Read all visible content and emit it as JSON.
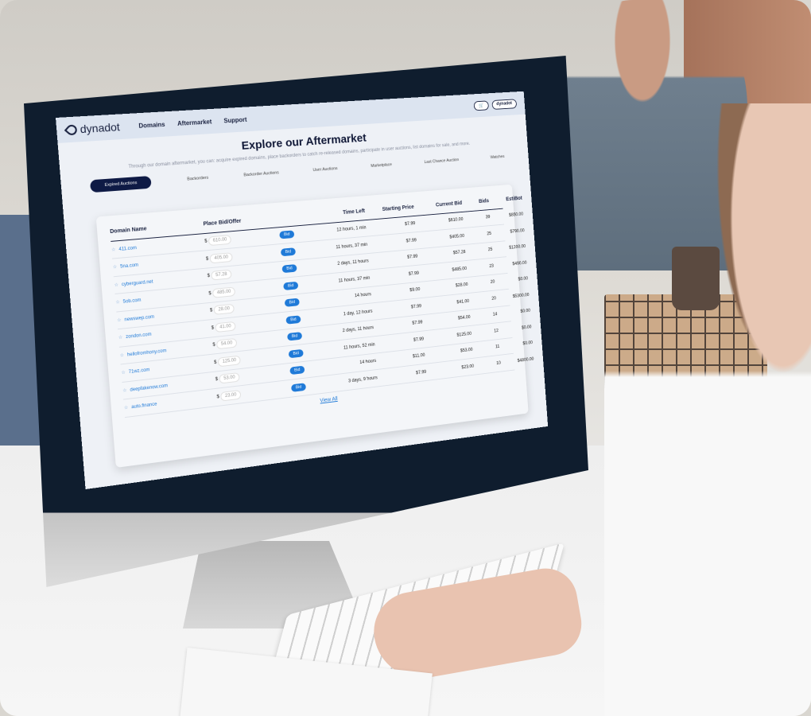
{
  "header": {
    "brand": "dynadot",
    "nav": [
      "Domains",
      "Aftermarket",
      "Support"
    ],
    "account": "dynadot"
  },
  "page": {
    "title": "Explore our Aftermarket",
    "subtitle": "Through our domain aftermarket, you can: acquire expired domains, place backorders to catch re-released domains, participate in user auctions, list domains for sale, and more.",
    "tabs": [
      "Expired Auctions",
      "Backorders",
      "Backorder Auctions",
      "User Auctions",
      "Marketplace",
      "Last Chance Auction",
      "Watches"
    ],
    "active_tab": "Expired Auctions"
  },
  "table": {
    "columns": [
      "Domain Name",
      "Place Bid/Offer",
      "",
      "Time Left",
      "Starting Price",
      "Current Bid",
      "Bids",
      "EstiBot"
    ],
    "bid_label": "Bid",
    "currency": "$",
    "rows": [
      {
        "domain": "411.com",
        "offer": "610.00",
        "time": "12 hours, 1 min",
        "start": "$7.99",
        "current": "$610.00",
        "bids": "39",
        "estibot": "$850.00"
      },
      {
        "domain": "5na.com",
        "offer": "405.00",
        "time": "11 hours, 37 min",
        "start": "$7.99",
        "current": "$405.00",
        "bids": "25",
        "estibot": "$790.00"
      },
      {
        "domain": "cyberguard.net",
        "offer": "57.28",
        "time": "2 days, 11 hours",
        "start": "$7.99",
        "current": "$57.28",
        "bids": "25",
        "estibot": "$1200.00"
      },
      {
        "domain": "5ob.com",
        "offer": "485.00",
        "time": "11 hours, 37 min",
        "start": "$7.99",
        "current": "$485.00",
        "bids": "23",
        "estibot": "$490.00"
      },
      {
        "domain": "newswep.com",
        "offer": "28.00",
        "time": "14 hours",
        "start": "$9.00",
        "current": "$28.00",
        "bids": "20",
        "estibot": "$0.00"
      },
      {
        "domain": "zondon.com",
        "offer": "41.00",
        "time": "1 day, 12 hours",
        "start": "$7.99",
        "current": "$41.00",
        "bids": "20",
        "estibot": "$5300.00"
      },
      {
        "domain": "hellofromhony.com",
        "offer": "54.00",
        "time": "2 days, 11 hours",
        "start": "$7.99",
        "current": "$54.00",
        "bids": "14",
        "estibot": "$0.00"
      },
      {
        "domain": "71wz.com",
        "offer": "125.00",
        "time": "11 hours, 52 min",
        "start": "$7.99",
        "current": "$125.00",
        "bids": "12",
        "estibot": "$0.00"
      },
      {
        "domain": "deepfakenow.com",
        "offer": "53.00",
        "time": "14 hours",
        "start": "$11.00",
        "current": "$53.00",
        "bids": "11",
        "estibot": "$0.00"
      },
      {
        "domain": "auto.finance",
        "offer": "23.00",
        "time": "3 days, 9 hours",
        "start": "$7.99",
        "current": "$23.00",
        "bids": "10",
        "estibot": "$4800.00"
      }
    ],
    "view_all": "View All"
  }
}
